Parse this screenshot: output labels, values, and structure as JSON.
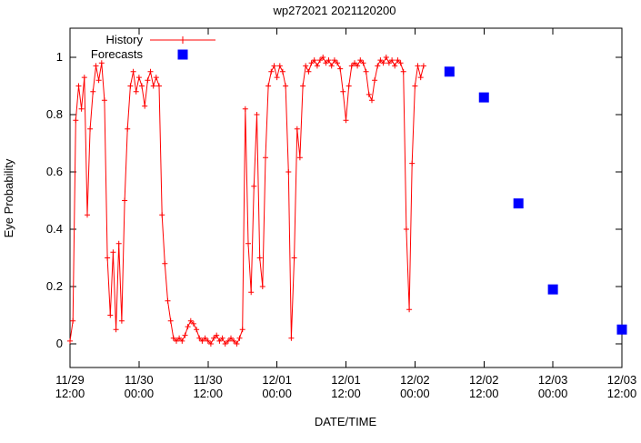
{
  "chart_data": {
    "type": "line",
    "title": "wp272021 2021120200",
    "xlabel": "DATE/TIME",
    "ylabel": "Eye Probability",
    "ylim": [
      0,
      1
    ],
    "x_unit": "hours since first tick (11/29 12:00)",
    "xlim": [
      0,
      96
    ],
    "grid": false,
    "yticks": [
      {
        "v": 0,
        "label": "0"
      },
      {
        "v": 0.2,
        "label": "0.2"
      },
      {
        "v": 0.4,
        "label": "0.4"
      },
      {
        "v": 0.6,
        "label": "0.6"
      },
      {
        "v": 0.8,
        "label": "0.8"
      },
      {
        "v": 1,
        "label": "1"
      }
    ],
    "xticks": [
      {
        "t": 0,
        "date": "11/29",
        "time": "12:00"
      },
      {
        "t": 12,
        "date": "11/30",
        "time": "00:00"
      },
      {
        "t": 24,
        "date": "11/30",
        "time": "12:00"
      },
      {
        "t": 36,
        "date": "12/01",
        "time": "00:00"
      },
      {
        "t": 48,
        "date": "12/01",
        "time": "12:00"
      },
      {
        "t": 60,
        "date": "12/02",
        "time": "00:00"
      },
      {
        "t": 72,
        "date": "12/02",
        "time": "12:00"
      },
      {
        "t": 84,
        "date": "12/03",
        "time": "00:00"
      },
      {
        "t": 96,
        "date": "12/03",
        "time": "12:00"
      }
    ],
    "legend": {
      "position": "top-left-inside",
      "entries": [
        {
          "name": "History",
          "marker": "plus-on-line",
          "color": "#ff0000"
        },
        {
          "name": "Forecasts",
          "marker": "filled-square",
          "color": "#0000ff"
        }
      ]
    },
    "series": [
      {
        "name": "History",
        "type": "line",
        "marker": "plus",
        "color": "#ff0000",
        "points": [
          [
            0,
            0.01
          ],
          [
            0.5,
            0.08
          ],
          [
            1,
            0.78
          ],
          [
            1.5,
            0.9
          ],
          [
            2,
            0.82
          ],
          [
            2.5,
            0.93
          ],
          [
            3,
            0.45
          ],
          [
            3.5,
            0.75
          ],
          [
            4,
            0.88
          ],
          [
            4.5,
            0.97
          ],
          [
            5,
            0.92
          ],
          [
            5.5,
            0.98
          ],
          [
            6,
            0.85
          ],
          [
            6.5,
            0.3
          ],
          [
            7,
            0.1
          ],
          [
            7.5,
            0.32
          ],
          [
            8,
            0.05
          ],
          [
            8.5,
            0.35
          ],
          [
            9,
            0.08
          ],
          [
            9.5,
            0.5
          ],
          [
            10,
            0.75
          ],
          [
            10.5,
            0.9
          ],
          [
            11,
            0.95
          ],
          [
            11.5,
            0.88
          ],
          [
            12,
            0.93
          ],
          [
            12.5,
            0.9
          ],
          [
            13,
            0.83
          ],
          [
            13.5,
            0.92
          ],
          [
            14,
            0.95
          ],
          [
            14.5,
            0.9
          ],
          [
            15,
            0.93
          ],
          [
            15.5,
            0.9
          ],
          [
            16,
            0.45
          ],
          [
            16.5,
            0.28
          ],
          [
            17,
            0.15
          ],
          [
            17.5,
            0.08
          ],
          [
            18,
            0.02
          ],
          [
            18.5,
            0.01
          ],
          [
            19,
            0.02
          ],
          [
            19.5,
            0.01
          ],
          [
            20,
            0.03
          ],
          [
            20.5,
            0.06
          ],
          [
            21,
            0.08
          ],
          [
            21.5,
            0.07
          ],
          [
            22,
            0.05
          ],
          [
            22.5,
            0.02
          ],
          [
            23,
            0.01
          ],
          [
            23.5,
            0.02
          ],
          [
            24,
            0.01
          ],
          [
            24.5,
            0
          ],
          [
            25,
            0.02
          ],
          [
            25.5,
            0.03
          ],
          [
            26,
            0.01
          ],
          [
            26.5,
            0.02
          ],
          [
            27,
            0
          ],
          [
            27.5,
            0.01
          ],
          [
            28,
            0.02
          ],
          [
            28.5,
            0.01
          ],
          [
            29,
            0
          ],
          [
            29.5,
            0.02
          ],
          [
            30,
            0.05
          ],
          [
            30.5,
            0.82
          ],
          [
            31,
            0.35
          ],
          [
            31.5,
            0.18
          ],
          [
            32,
            0.55
          ],
          [
            32.5,
            0.8
          ],
          [
            33,
            0.3
          ],
          [
            33.5,
            0.2
          ],
          [
            34,
            0.65
          ],
          [
            34.5,
            0.9
          ],
          [
            35,
            0.95
          ],
          [
            35.5,
            0.97
          ],
          [
            36,
            0.93
          ],
          [
            36.5,
            0.97
          ],
          [
            37,
            0.95
          ],
          [
            37.5,
            0.9
          ],
          [
            38,
            0.6
          ],
          [
            38.5,
            0.02
          ],
          [
            39,
            0.3
          ],
          [
            39.5,
            0.75
          ],
          [
            40,
            0.65
          ],
          [
            40.5,
            0.9
          ],
          [
            41,
            0.97
          ],
          [
            41.5,
            0.95
          ],
          [
            42,
            0.98
          ],
          [
            42.5,
            0.99
          ],
          [
            43,
            0.97
          ],
          [
            43.5,
            0.99
          ],
          [
            44,
            1
          ],
          [
            44.5,
            0.98
          ],
          [
            45,
            0.99
          ],
          [
            45.5,
            0.97
          ],
          [
            46,
            0.99
          ],
          [
            46.5,
            0.98
          ],
          [
            47,
            0.96
          ],
          [
            47.5,
            0.88
          ],
          [
            48,
            0.78
          ],
          [
            48.5,
            0.9
          ],
          [
            49,
            0.97
          ],
          [
            49.5,
            0.98
          ],
          [
            50,
            0.97
          ],
          [
            50.5,
            0.99
          ],
          [
            51,
            0.98
          ],
          [
            51.5,
            0.95
          ],
          [
            52,
            0.87
          ],
          [
            52.5,
            0.85
          ],
          [
            53,
            0.92
          ],
          [
            53.5,
            0.97
          ],
          [
            54,
            0.99
          ],
          [
            54.5,
            0.98
          ],
          [
            55,
            1
          ],
          [
            55.5,
            0.98
          ],
          [
            56,
            0.99
          ],
          [
            56.5,
            0.97
          ],
          [
            57,
            0.99
          ],
          [
            57.5,
            0.98
          ],
          [
            58,
            0.95
          ],
          [
            58.5,
            0.4
          ],
          [
            59,
            0.12
          ],
          [
            59.5,
            0.63
          ],
          [
            60,
            0.9
          ],
          [
            60.5,
            0.97
          ],
          [
            61,
            0.93
          ],
          [
            61.5,
            0.97
          ]
        ]
      },
      {
        "name": "Forecasts",
        "type": "scatter",
        "marker": "filled-square",
        "color": "#0000ff",
        "points": [
          [
            66,
            0.95
          ],
          [
            72,
            0.86
          ],
          [
            78,
            0.49
          ],
          [
            84,
            0.19
          ],
          [
            96,
            0.05
          ]
        ]
      }
    ]
  }
}
